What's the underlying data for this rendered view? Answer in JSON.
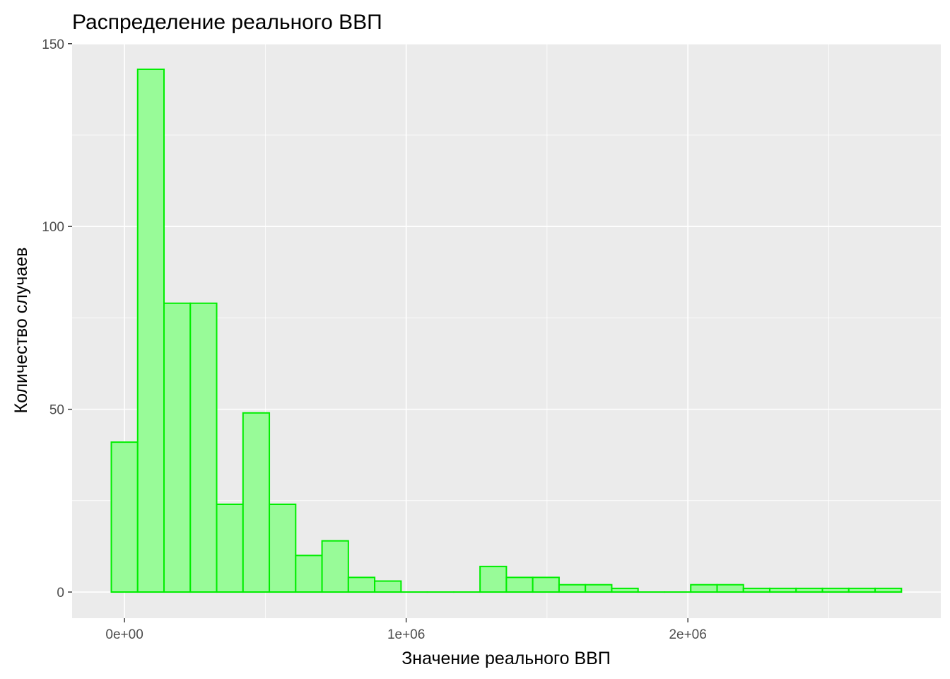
{
  "chart_data": {
    "type": "bar",
    "subtype": "histogram",
    "title": "Распределение реального ВВП",
    "xlabel": "Значение реального ВВП",
    "ylabel": "Количество случаев",
    "bin_width": 93500,
    "bins": [
      {
        "start": -46750,
        "end": 46750,
        "count": 41
      },
      {
        "start": 46750,
        "end": 140250,
        "count": 143
      },
      {
        "start": 140250,
        "end": 233750,
        "count": 79
      },
      {
        "start": 233750,
        "end": 327250,
        "count": 79
      },
      {
        "start": 327250,
        "end": 420750,
        "count": 24
      },
      {
        "start": 420750,
        "end": 514250,
        "count": 49
      },
      {
        "start": 514250,
        "end": 607750,
        "count": 24
      },
      {
        "start": 607750,
        "end": 701250,
        "count": 10
      },
      {
        "start": 701250,
        "end": 794750,
        "count": 14
      },
      {
        "start": 794750,
        "end": 888250,
        "count": 4
      },
      {
        "start": 888250,
        "end": 981750,
        "count": 3
      },
      {
        "start": 981750,
        "end": 1075250,
        "count": 0
      },
      {
        "start": 1075250,
        "end": 1168750,
        "count": 0
      },
      {
        "start": 1168750,
        "end": 1262250,
        "count": 0
      },
      {
        "start": 1262250,
        "end": 1355750,
        "count": 7
      },
      {
        "start": 1355750,
        "end": 1449250,
        "count": 4
      },
      {
        "start": 1449250,
        "end": 1542750,
        "count": 4
      },
      {
        "start": 1542750,
        "end": 1636250,
        "count": 2
      },
      {
        "start": 1636250,
        "end": 1729750,
        "count": 2
      },
      {
        "start": 1729750,
        "end": 1823250,
        "count": 1
      },
      {
        "start": 1823250,
        "end": 1916750,
        "count": 0
      },
      {
        "start": 1916750,
        "end": 2010250,
        "count": 0
      },
      {
        "start": 2010250,
        "end": 2103750,
        "count": 2
      },
      {
        "start": 2103750,
        "end": 2197250,
        "count": 2
      },
      {
        "start": 2197250,
        "end": 2290750,
        "count": 1
      },
      {
        "start": 2290750,
        "end": 2384250,
        "count": 1
      },
      {
        "start": 2384250,
        "end": 2477750,
        "count": 1
      },
      {
        "start": 2477750,
        "end": 2571250,
        "count": 1
      },
      {
        "start": 2571250,
        "end": 2664750,
        "count": 1
      },
      {
        "start": 2664750,
        "end": 2758250,
        "count": 1
      }
    ],
    "xlim": [
      -186000,
      2898000
    ],
    "ylim": [
      -7.15,
      150.15
    ],
    "x_ticks": [
      {
        "value": 0,
        "label": "0e+00"
      },
      {
        "value": 1000000,
        "label": "1e+06"
      },
      {
        "value": 2000000,
        "label": "2e+06"
      }
    ],
    "y_ticks": [
      {
        "value": 0,
        "label": "0"
      },
      {
        "value": 50,
        "label": "50"
      },
      {
        "value": 100,
        "label": "100"
      },
      {
        "value": 150,
        "label": "150"
      }
    ],
    "x_minor_grid": [
      500000,
      1500000,
      2500000
    ],
    "y_minor_grid": [
      25,
      75,
      125
    ],
    "grid": true,
    "legend": "none",
    "colors": {
      "panel_background": "#ebebeb",
      "bar_fill": "#98fb98",
      "bar_outline": "#00ee00"
    }
  }
}
